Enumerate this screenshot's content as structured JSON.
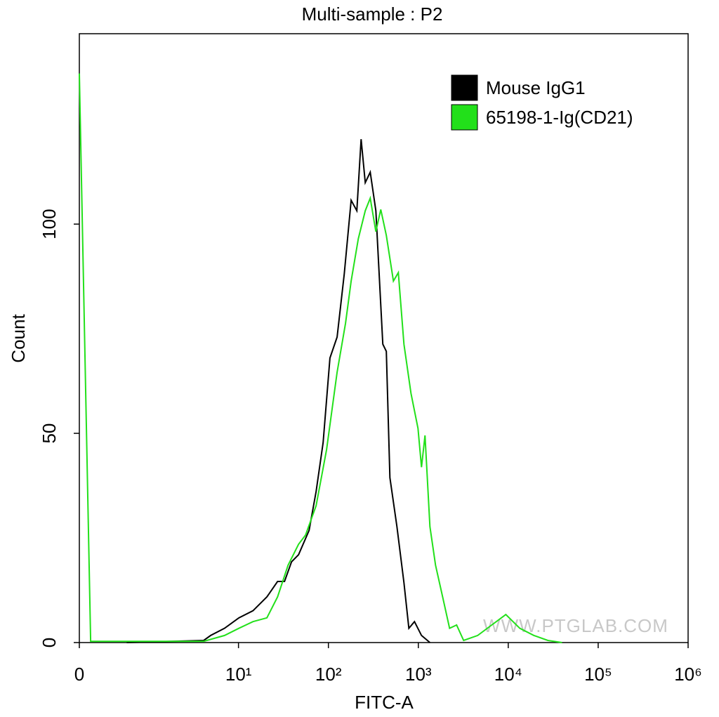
{
  "chart_data": {
    "type": "line",
    "title": "Multi-sample : P2",
    "x_label": "FITC-A",
    "y_label": "Count",
    "xscale": "logicle",
    "xlim": [
      0,
      1000000
    ],
    "xticks": [
      0,
      {
        "value": 10,
        "label": "10¹"
      },
      {
        "value": 100,
        "label": "10²"
      },
      {
        "value": 1000,
        "label": "10³"
      },
      {
        "value": 10000,
        "label": "10⁴"
      },
      {
        "value": 100000,
        "label": "10⁵"
      },
      {
        "value": 1000000,
        "label": "10⁶"
      }
    ],
    "ylim": [
      0,
      145.5
    ],
    "yticks": [
      0,
      50,
      100
    ],
    "legend": "top-right",
    "watermark": "WWW.PTGLAB.COM",
    "series": [
      {
        "name": "Mouse IgG1",
        "color": "#000000",
        "x": [
          0.52,
          4.1,
          4.9,
          7.0,
          10.1,
          14.5,
          20.7,
          27.2,
          32.5,
          38.9,
          46.6,
          61.0,
          73.0,
          87.3,
          104,
          125,
          150,
          179,
          207,
          231,
          257,
          292,
          337,
          403,
          441,
          483,
          578,
          692,
          785,
          906,
          1084,
          1346
        ],
        "values": [
          0,
          0.5,
          1.7,
          3.4,
          5.9,
          7.6,
          10.9,
          14.6,
          14.6,
          19.3,
          21.0,
          26.8,
          36.1,
          47.8,
          68.0,
          73.0,
          88.1,
          105.7,
          103.2,
          120.3,
          109.9,
          112.4,
          103.2,
          71.3,
          69.6,
          39.4,
          27.7,
          14.3,
          3.4,
          5.0,
          1.7,
          0
        ]
      },
      {
        "name": "65198-1-Ig(CD21)",
        "color": "#22e01a",
        "x": [
          0,
          0.1,
          0.28,
          0.78,
          4.1,
          7.0,
          10.1,
          14.5,
          20.7,
          27.2,
          35.6,
          46.6,
          55.7,
          73.0,
          95.5,
          125,
          155,
          179,
          215,
          257,
          292,
          337,
          382,
          441,
          528,
          599,
          692,
          828,
          991,
          1084,
          1186,
          1346,
          1554,
          1862,
          2228,
          2667,
          3192,
          4571,
          6548,
          9397,
          13450,
          19280,
          27610,
          39630
        ],
        "values": [
          136,
          0.3,
          0.3,
          0.3,
          0.3,
          1.7,
          3.4,
          5.0,
          5.9,
          10.9,
          18.5,
          23.5,
          25.7,
          32.7,
          46.1,
          64.6,
          76.3,
          86.4,
          96.5,
          103.2,
          106.2,
          98.2,
          103.5,
          97.3,
          86.4,
          88.4,
          71.3,
          59.6,
          51.2,
          41.9,
          49.5,
          27.7,
          18.5,
          10.9,
          3.4,
          4.2,
          0.5,
          1.7,
          4.2,
          6.7,
          3.4,
          1.7,
          0.5,
          0
        ]
      }
    ]
  }
}
